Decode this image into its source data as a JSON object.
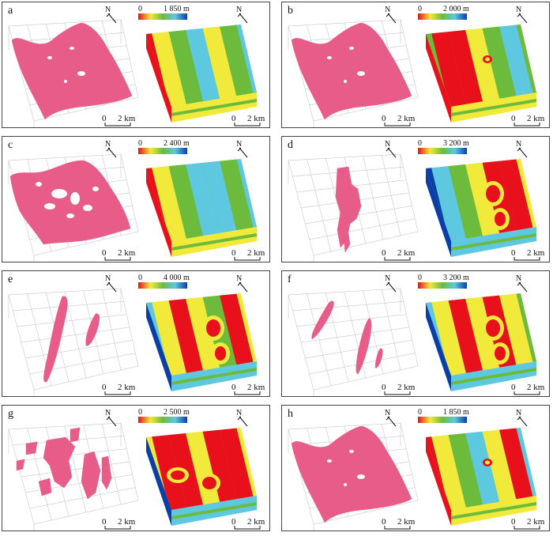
{
  "colors": {
    "pink": "#e75c88",
    "red": "#e8101a",
    "yellow": "#f2ea3a",
    "green": "#6cbb3c",
    "cyan": "#5ec8e0",
    "blue": "#0a3fa8",
    "grid": "#b8bcc8"
  },
  "north_label": "N",
  "scale": {
    "zero": "0",
    "value": "2 km"
  },
  "panels": [
    {
      "id": "a",
      "label": "a",
      "cbar_min": "0",
      "cbar_max": "1 850 m",
      "shape": "large"
    },
    {
      "id": "b",
      "label": "b",
      "cbar_min": "0",
      "cbar_max": "2 000 m",
      "shape": "large"
    },
    {
      "id": "c",
      "label": "c",
      "cbar_min": "0",
      "cbar_max": "2 400 m",
      "shape": "holey"
    },
    {
      "id": "d",
      "label": "d",
      "cbar_min": "0",
      "cbar_max": "3 200 m",
      "shape": "patch"
    },
    {
      "id": "e",
      "label": "e",
      "cbar_min": "0",
      "cbar_max": "4 000 m",
      "shape": "lenses"
    },
    {
      "id": "f",
      "label": "f",
      "cbar_min": "0",
      "cbar_max": "3 200 m",
      "shape": "slivers"
    },
    {
      "id": "g",
      "label": "g",
      "cbar_min": "0",
      "cbar_max": "2 500 m",
      "shape": "scattered"
    },
    {
      "id": "h",
      "label": "h",
      "cbar_min": "0",
      "cbar_max": "1 850 m",
      "shape": "large"
    }
  ]
}
